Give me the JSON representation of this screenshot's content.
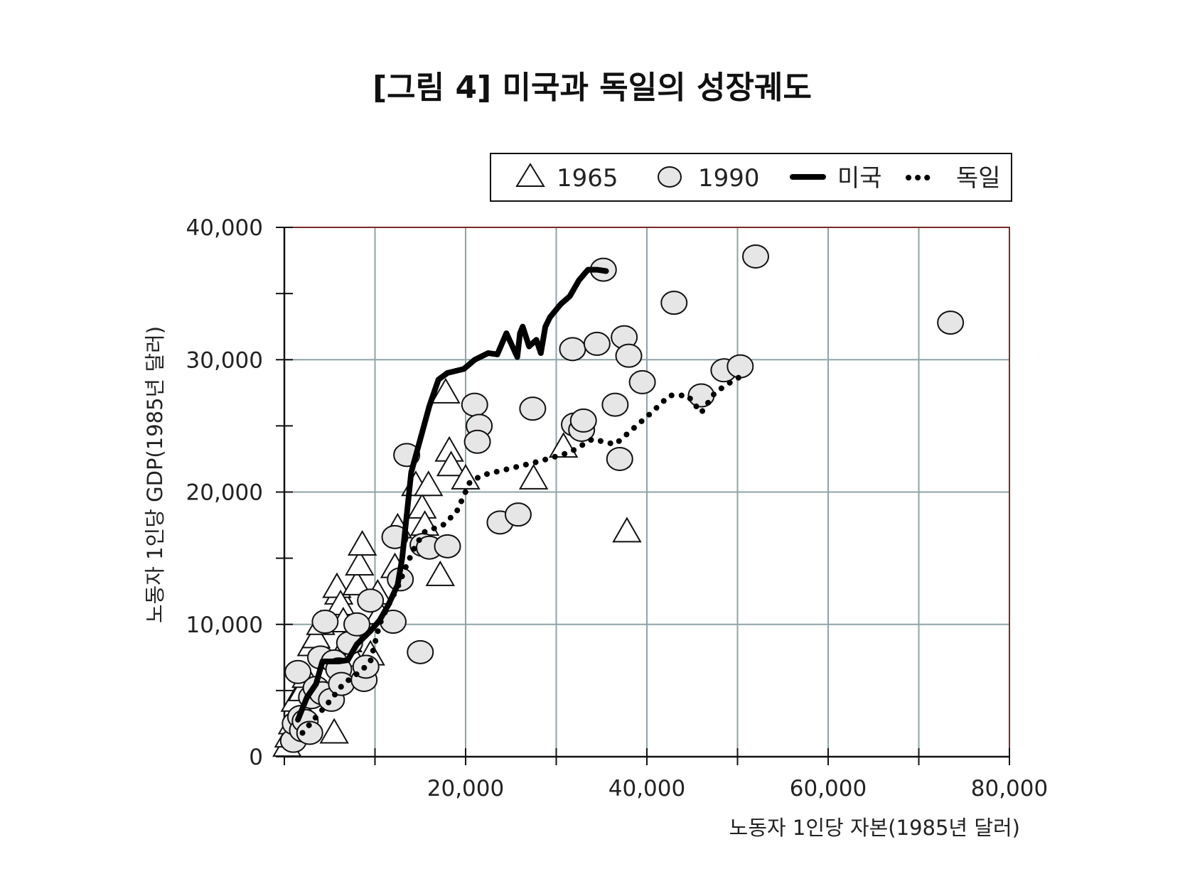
{
  "chart_data": {
    "type": "scatter",
    "title": "[그림 4] 미국과 독일의 성장궤도",
    "xlabel": "노동자 1인당 자본(1985년 달러)",
    "ylabel": "노동자 1인당 GDP(1985년 달러)",
    "xlim": [
      0,
      80000
    ],
    "ylim": [
      0,
      40000
    ],
    "x_tick_labels": [
      "20,000",
      "40,000",
      "60,000",
      "80,000"
    ],
    "x_tick_values": [
      20000,
      40000,
      60000,
      80000
    ],
    "y_tick_labels": [
      "0",
      "10,000",
      "20,000",
      "30,000",
      "40,000"
    ],
    "y_tick_values": [
      0,
      10000,
      20000,
      30000,
      40000
    ],
    "grid": true,
    "legend_position": "top-right",
    "colors": {
      "grid": "#8fa3a6",
      "frame": "#7a2a2a",
      "line": "#000000",
      "marker_fill_1990": "#e6e6e6"
    },
    "series": [
      {
        "name": "1965",
        "kind": "scatter",
        "marker": "triangle",
        "x": [
          300,
          500,
          900,
          1200,
          2000,
          2400,
          3000,
          3500,
          4000,
          5500,
          6000,
          5800,
          6200,
          6500,
          7000,
          7500,
          8000,
          8300,
          8600,
          9500,
          10500,
          10300,
          12200,
          12500,
          14500,
          15200,
          15500,
          15900,
          17200,
          17800,
          18200,
          18400,
          20000,
          27500,
          30800,
          37800
        ],
        "y": [
          800,
          1500,
          2500,
          4200,
          5000,
          6000,
          8400,
          9000,
          10000,
          1800,
          12300,
          12800,
          11500,
          10200,
          8700,
          7600,
          13000,
          14500,
          16000,
          7700,
          10800,
          12300,
          14300,
          17300,
          20500,
          18800,
          17500,
          20500,
          13700,
          27500,
          23100,
          22000,
          21000,
          21000,
          23400,
          17000
        ]
      },
      {
        "name": "1990",
        "kind": "scatter",
        "marker": "circle",
        "x": [
          1000,
          1200,
          1500,
          1800,
          2000,
          2300,
          2800,
          3000,
          3500,
          4000,
          4200,
          4500,
          5200,
          5500,
          6000,
          6300,
          7200,
          8000,
          8800,
          9000,
          9500,
          12000,
          12200,
          12800,
          13500,
          15000,
          15300,
          16000,
          18000,
          21000,
          21500,
          21300,
          23800,
          25800,
          27400,
          31800,
          32000,
          32800,
          33000,
          34500,
          35200,
          36500,
          37500,
          37000,
          38000,
          39500,
          43000,
          46000,
          48500,
          50300,
          52000,
          73500
        ],
        "y": [
          1200,
          2500,
          6400,
          3000,
          2000,
          2700,
          1800,
          4500,
          5200,
          7500,
          4800,
          10200,
          4300,
          7200,
          6600,
          5500,
          8600,
          10000,
          5800,
          6800,
          11800,
          10200,
          16600,
          13400,
          22800,
          7900,
          16000,
          15800,
          15900,
          26600,
          25000,
          23800,
          17700,
          18300,
          26300,
          30800,
          25100,
          24700,
          25400,
          31200,
          36800,
          26600,
          31700,
          22500,
          30300,
          28300,
          34300,
          27300,
          29200,
          29500,
          37800,
          32800
        ]
      },
      {
        "name": "미국",
        "kind": "line",
        "style": "solid",
        "x": [
          1500,
          2500,
          3500,
          4200,
          6000,
          7000,
          8000,
          9500,
          10500,
          11500,
          12500,
          13000,
          14000,
          15000,
          16000,
          17000,
          18000,
          19800,
          21000,
          22500,
          23500,
          24500,
          25700,
          26000,
          26300,
          27000,
          27800,
          28300,
          28800,
          29300,
          30500,
          31500,
          32500,
          33500,
          34500,
          35500
        ],
        "y": [
          2800,
          4500,
          5500,
          7200,
          7200,
          7300,
          8500,
          9500,
          10300,
          11500,
          13000,
          15000,
          21500,
          24000,
          26500,
          28500,
          29000,
          29300,
          30000,
          30500,
          30400,
          32000,
          30200,
          32000,
          32500,
          31000,
          31500,
          30500,
          32500,
          33200,
          34200,
          34800,
          36000,
          36800,
          36800,
          36700
        ]
      },
      {
        "name": "독일",
        "kind": "line",
        "style": "dotted",
        "x": [
          2000,
          3500,
          5000,
          6500,
          7500,
          8500,
          9500,
          10500,
          11500,
          12500,
          13500,
          14500,
          15500,
          17500,
          19000,
          20500,
          22000,
          25000,
          28000,
          31500,
          34000,
          36500,
          38500,
          40500,
          42500,
          44500,
          46000,
          47500,
          49000,
          51000
        ],
        "y": [
          1800,
          3000,
          4200,
          5500,
          6000,
          6500,
          7200,
          10000,
          11500,
          12800,
          14500,
          16000,
          17000,
          17500,
          18500,
          20800,
          21300,
          21800,
          22300,
          23000,
          24000,
          23600,
          24800,
          26000,
          27300,
          27300,
          26000,
          27500,
          28200,
          29000
        ]
      }
    ]
  }
}
